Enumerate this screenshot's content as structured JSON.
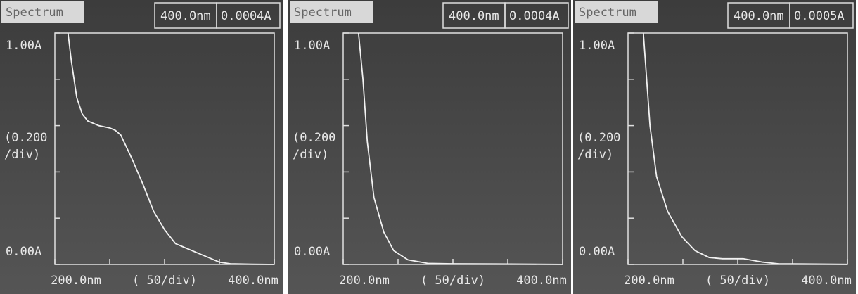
{
  "chart_data": [
    {
      "type": "line",
      "title": "Spectrum",
      "cursor_label": "400.0nm",
      "readout_label": "0.0004A",
      "ylabel": [
        "(0.200",
        "/div)"
      ],
      "xlabel": "( 50/div)",
      "x": [
        212,
        215,
        220,
        225,
        230,
        240,
        250,
        255,
        260,
        270,
        280,
        290,
        300,
        310,
        320,
        330,
        340,
        350,
        360,
        380,
        400
      ],
      "series": [
        {
          "color": "#f2f2f2",
          "values": [
            1.0,
            0.88,
            0.72,
            0.65,
            0.62,
            0.6,
            0.59,
            0.58,
            0.56,
            0.46,
            0.35,
            0.23,
            0.15,
            0.09,
            0.07,
            0.05,
            0.03,
            0.01,
            0.003,
            0.001,
            0.0004
          ]
        }
      ],
      "xlim": [
        200,
        400
      ],
      "ylim": [
        0,
        1
      ],
      "xticks": [
        {
          "value": 200,
          "label": "200.0nm"
        },
        {
          "value": 400,
          "label": "400.0nm"
        }
      ],
      "yticks": [
        {
          "value": 0,
          "label": "0.00A"
        },
        {
          "value": 1,
          "label": "1.00A"
        }
      ],
      "xminorticks": [
        250,
        300,
        350
      ],
      "yminorticks": [
        0.2,
        0.4,
        0.6,
        0.8
      ]
    },
    {
      "type": "line",
      "title": "Spectrum",
      "cursor_label": "400.0nm",
      "readout_label": "0.0004A",
      "ylabel": [
        "(0.200",
        "/div)"
      ],
      "xlabel": "( 50/div)",
      "x": [
        214,
        218,
        222,
        228,
        237,
        246,
        259,
        277,
        300,
        340,
        400
      ],
      "series": [
        {
          "color": "#f2f2f2",
          "values": [
            1.0,
            0.8,
            0.53,
            0.29,
            0.14,
            0.06,
            0.02,
            0.005,
            0.003,
            0.002,
            0.0004
          ]
        }
      ],
      "xlim": [
        200,
        400
      ],
      "ylim": [
        0,
        1
      ],
      "xticks": [
        {
          "value": 200,
          "label": "200.0nm"
        },
        {
          "value": 400,
          "label": "400.0nm"
        }
      ],
      "yticks": [
        {
          "value": 0,
          "label": "0.00A"
        },
        {
          "value": 1,
          "label": "1.00A"
        }
      ],
      "xminorticks": [
        250,
        300,
        350
      ],
      "yminorticks": [
        0.2,
        0.4,
        0.6,
        0.8
      ]
    },
    {
      "type": "line",
      "title": "Spectrum",
      "cursor_label": "400.0nm",
      "readout_label": "0.0005A",
      "ylabel": [
        "(0.200",
        "/div)"
      ],
      "xlabel": "( 50/div)",
      "x": [
        214,
        220,
        226,
        236,
        249,
        261,
        274,
        286,
        305,
        323,
        337,
        400
      ],
      "series": [
        {
          "color": "#f2f2f2",
          "values": [
            1.0,
            0.6,
            0.38,
            0.23,
            0.12,
            0.06,
            0.03,
            0.025,
            0.025,
            0.01,
            0.003,
            0.0005
          ]
        }
      ],
      "xlim": [
        200,
        400
      ],
      "ylim": [
        0,
        1
      ],
      "xticks": [
        {
          "value": 200,
          "label": "200.0nm"
        },
        {
          "value": 400,
          "label": "400.0nm"
        }
      ],
      "yticks": [
        {
          "value": 0,
          "label": "0.00A"
        },
        {
          "value": 1,
          "label": "1.00A"
        }
      ],
      "xminorticks": [
        250,
        300,
        350
      ],
      "yminorticks": [
        0.2,
        0.4,
        0.6,
        0.8
      ]
    }
  ]
}
